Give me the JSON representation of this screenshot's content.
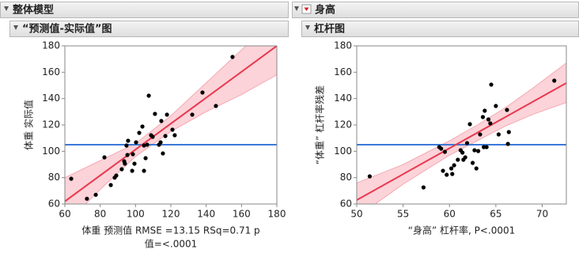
{
  "header": {
    "left": "整体模型",
    "right": "身高"
  },
  "subheader": {
    "left": "“预测值-实际值”图",
    "right": "杠杆图"
  },
  "chart_data": [
    {
      "type": "scatter",
      "ylabel": "体重 实际值",
      "xlabel_lines": [
        "体重 预测值 RMSE =13.15 RSq=0.71 p",
        "值=<.0001"
      ],
      "x": [
        63.6,
        72.5,
        77.5,
        82.4,
        86,
        88.2,
        89.1,
        92.2,
        93.6,
        94,
        94.9,
        95.4,
        95.8,
        98.1,
        98.5,
        99.4,
        100.3,
        102.1,
        103.9,
        104.8,
        104.8,
        105.7,
        106.6,
        107.5,
        108.8,
        109.7,
        111,
        113.3,
        114.2,
        114.6,
        115.5,
        116.9,
        117.8,
        120.9,
        122.2,
        132.1,
        137.9,
        145.5,
        154.9
      ],
      "y": [
        79.2,
        64,
        67,
        95.4,
        74.4,
        80,
        81.6,
        86.4,
        92.4,
        90.6,
        104.4,
        97.2,
        108,
        85.2,
        97.8,
        90.6,
        106.8,
        114,
        118.8,
        104.4,
        85.2,
        94.8,
        105,
        142.2,
        112.2,
        111,
        128.4,
        105,
        106.8,
        123,
        98.4,
        111.6,
        127.8,
        116.4,
        112.2,
        127.8,
        144.6,
        134.4,
        171.6
      ],
      "color": "#000000",
      "fit": {
        "x": [
          60,
          180
        ],
        "y": [
          62,
          180
        ],
        "color": "#e8384f"
      },
      "band": {
        "x": [
          60,
          80,
          100,
          120,
          140,
          160,
          180
        ],
        "upper": [
          80,
          93,
          106,
          127,
          152,
          177,
          202
        ],
        "lower": [
          44,
          71,
          96,
          115,
          130,
          143,
          158
        ],
        "color": "#fbd3d8"
      },
      "ref_line": {
        "y": 105,
        "color": "#3b78d8"
      },
      "xlim": [
        60,
        180
      ],
      "xticks": [
        60,
        80,
        100,
        120,
        140,
        160,
        180
      ],
      "ylim": [
        60,
        180
      ],
      "yticks": [
        60,
        80,
        100,
        120,
        140,
        160,
        180
      ]
    },
    {
      "type": "scatter",
      "ylabel": "“体重” 杠杆率残差",
      "xlabel_lines": [
        "“身高” 杠杆率, P<.0001"
      ],
      "x": [
        51.4,
        57.2,
        58.9,
        59.1,
        59.3,
        59.5,
        59.7,
        60.2,
        60.3,
        60.5,
        60.9,
        61.2,
        61.4,
        61.5,
        61.7,
        61.9,
        62.2,
        62.5,
        62.7,
        62.9,
        63.1,
        63.3,
        63.6,
        63.7,
        63.8,
        64,
        64.2,
        64.4,
        64.5,
        65,
        65.3,
        66.2,
        66.3,
        66.4,
        71.3
      ],
      "y": [
        81,
        72.6,
        103.2,
        102,
        85.2,
        99.6,
        82.2,
        87,
        82.8,
        89.4,
        93.6,
        100.8,
        99,
        93.6,
        95.4,
        106.2,
        120.6,
        91.2,
        100.8,
        87,
        100.2,
        112.8,
        126,
        103.2,
        130.8,
        103.2,
        124.2,
        121.2,
        150.6,
        134.4,
        112.8,
        131.4,
        105.6,
        114.6,
        153.6
      ],
      "color": "#000000",
      "fit": {
        "x": [
          50,
          72.6
        ],
        "y": [
          63,
          151.8
        ],
        "color": "#e8384f"
      },
      "band": {
        "x": [
          50,
          55,
          60,
          63,
          66,
          69,
          72.6
        ],
        "upper": [
          76,
          90,
          108,
          120,
          133,
          148,
          167
        ],
        "lower": [
          50,
          75,
          97,
          108,
          119,
          128,
          137
        ],
        "color": "#fbd3d8"
      },
      "ref_line": {
        "y": 105,
        "color": "#3b78d8"
      },
      "xlim": [
        50,
        72.6
      ],
      "xticks": [
        50,
        55,
        60,
        65,
        70
      ],
      "ylim": [
        60,
        180
      ],
      "yticks": [
        60,
        80,
        100,
        120,
        140,
        160,
        180
      ]
    }
  ]
}
